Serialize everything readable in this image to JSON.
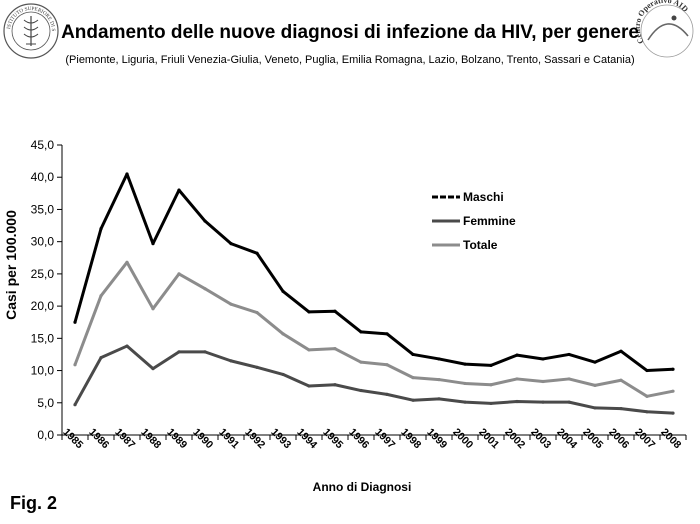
{
  "header": {
    "left_logo_text": "ISTITUTO SUPERIORE DI SANITÀ",
    "right_logo_text": "Centro Operativo AIDS",
    "title": "Andamento delle nuove diagnosi di infezione da HIV, per genere",
    "subtitle": "(Piemonte, Liguria, Friuli Venezia-Giulia, Veneto, Puglia, Emilia Romagna, Lazio, Bolzano, Trento, Sassari  e Catania)"
  },
  "footer": {
    "fig_label": "Fig. 2"
  },
  "colors": {
    "maschi": "#000000",
    "femmine": "#4a4a4a",
    "totale": "#8c8c8c"
  },
  "chart_data": {
    "type": "line",
    "xlabel": "Anno di Diagnosi",
    "ylabel": "Casi  per 100.000",
    "ylim": [
      0,
      45
    ],
    "yticks": [
      "0,0",
      "5,0",
      "10,0",
      "15,0",
      "20,0",
      "25,0",
      "30,0",
      "35,0",
      "40,0",
      "45,0"
    ],
    "grid": false,
    "legend_position": "top-right",
    "x": [
      "1985",
      "1986",
      "1987",
      "1988",
      "1989",
      "1990",
      "1991",
      "1992",
      "1993",
      "1994",
      "1995",
      "1996",
      "1997",
      "1998",
      "1999",
      "2000",
      "2001",
      "2002",
      "2003",
      "2004",
      "2005",
      "2006",
      "2007",
      "2008"
    ],
    "series": [
      {
        "name": "Maschi",
        "color_key": "maschi",
        "values": [
          17.5,
          32.0,
          40.5,
          29.7,
          38.0,
          33.2,
          29.7,
          28.2,
          22.3,
          19.1,
          19.2,
          16.0,
          15.7,
          12.5,
          11.8,
          11.0,
          10.8,
          12.4,
          11.8,
          12.5,
          11.3,
          13.0,
          10.0,
          10.2
        ]
      },
      {
        "name": "Femmine",
        "color_key": "femmine",
        "values": [
          4.7,
          12.0,
          13.8,
          10.3,
          12.9,
          12.9,
          11.5,
          10.5,
          9.4,
          7.6,
          7.8,
          6.9,
          6.3,
          5.4,
          5.6,
          5.1,
          4.9,
          5.2,
          5.1,
          5.1,
          4.2,
          4.1,
          3.6,
          3.4
        ]
      },
      {
        "name": "Totale",
        "color_key": "totale",
        "values": [
          10.9,
          21.6,
          26.8,
          19.6,
          25.0,
          22.7,
          20.3,
          19.0,
          15.7,
          13.2,
          13.4,
          11.3,
          10.9,
          8.9,
          8.6,
          8.0,
          7.8,
          8.7,
          8.3,
          8.7,
          7.7,
          8.5,
          6.0,
          6.8
        ]
      }
    ]
  }
}
